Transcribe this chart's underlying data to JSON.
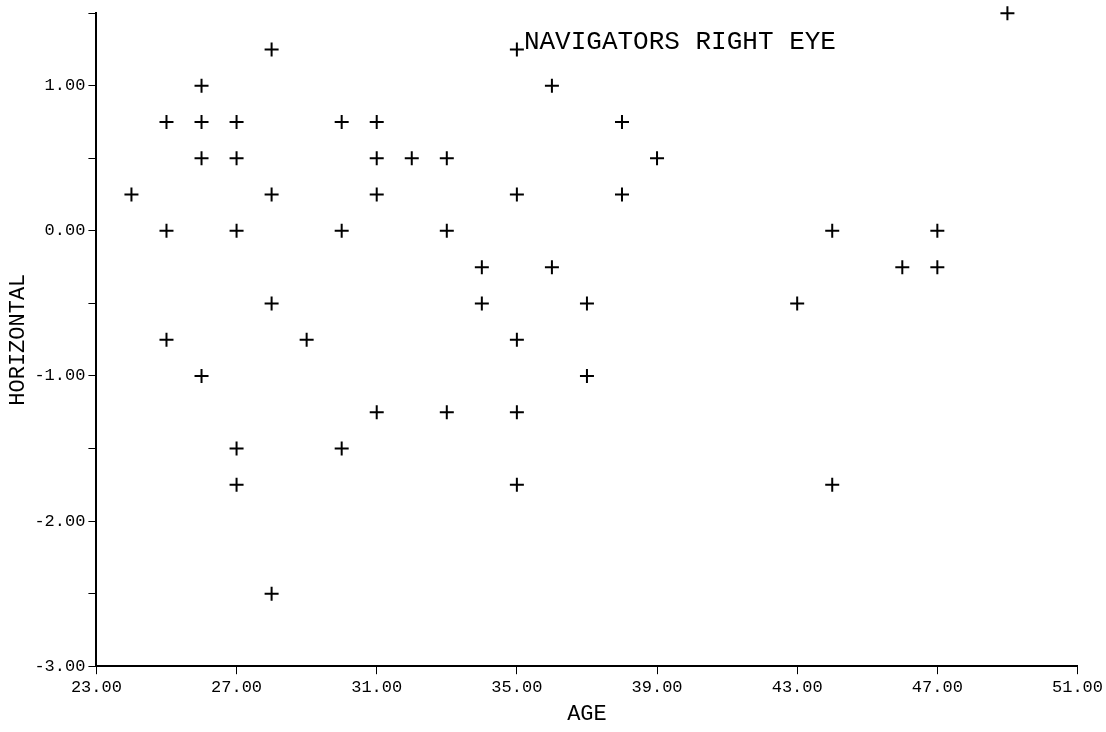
{
  "chart_data": {
    "type": "scatter",
    "title": "NAVIGATORS RIGHT EYE",
    "xlabel": "AGE",
    "ylabel": "HORIZONTAL",
    "x": [
      24,
      25,
      25,
      25,
      26,
      26,
      26,
      26,
      27,
      27,
      27,
      27,
      27,
      28,
      28,
      28,
      28,
      29,
      30,
      30,
      30,
      31,
      31,
      31,
      31,
      32,
      33,
      33,
      33,
      34,
      34,
      35,
      35,
      35,
      35,
      35,
      36,
      36,
      37,
      37,
      38,
      38,
      39,
      43,
      44,
      44,
      46,
      47,
      47,
      49
    ],
    "values": [
      0.25,
      0.75,
      0,
      -0.75,
      1,
      0.75,
      0.5,
      -1,
      0.75,
      0.5,
      0,
      -1.5,
      -1.75,
      1.25,
      0.25,
      -0.5,
      -2.5,
      -0.75,
      0.75,
      0,
      -1.5,
      0.75,
      0.5,
      0.25,
      -1.25,
      0.5,
      0.5,
      0,
      -1.25,
      -0.25,
      -0.5,
      1.25,
      0.25,
      -0.75,
      -1.25,
      -1.75,
      1,
      -0.25,
      -0.5,
      -1,
      0.75,
      0.25,
      0.5,
      -0.5,
      0,
      -1.75,
      -0.25,
      0,
      -0.25,
      1.5
    ],
    "color": "#000000",
    "marker": "cross",
    "grid": false,
    "legend": false,
    "xlim": [
      23,
      51
    ],
    "xticks": [
      {
        "value": 23,
        "label": "23.00"
      },
      {
        "value": 27,
        "label": "27.00"
      },
      {
        "value": 31,
        "label": "31.00"
      },
      {
        "value": 35,
        "label": "35.00"
      },
      {
        "value": 39,
        "label": "39.00"
      },
      {
        "value": 43,
        "label": "43.00"
      },
      {
        "value": 47,
        "label": "47.00"
      },
      {
        "value": 51,
        "label": "51.00"
      }
    ],
    "ylim": [
      -3,
      1.5
    ],
    "yticks": [
      {
        "value": -3,
        "label": "-3.00"
      },
      {
        "value": -2.5,
        "label": null
      },
      {
        "value": -2,
        "label": "-2.00"
      },
      {
        "value": -1.5,
        "label": null
      },
      {
        "value": -1,
        "label": "-1.00"
      },
      {
        "value": -0.5,
        "label": null
      },
      {
        "value": 0,
        "label": "0.00"
      },
      {
        "value": 0.5,
        "label": null
      },
      {
        "value": 1,
        "label": "1.00"
      },
      {
        "value": 1.5,
        "label": null
      }
    ]
  }
}
